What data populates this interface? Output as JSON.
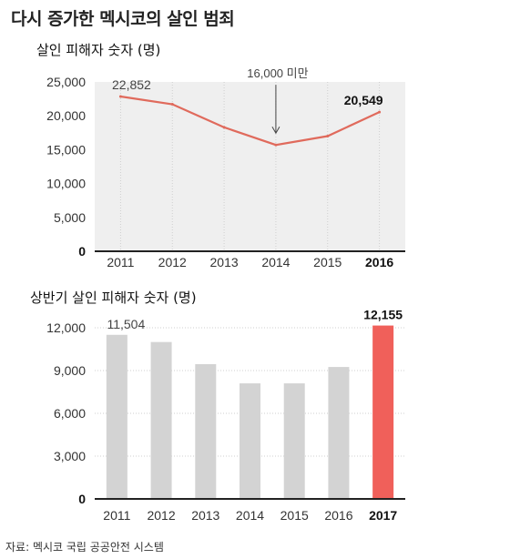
{
  "title": "다시 증가한 멕시코의 살인 범죄",
  "source": "자료: 멕시코 국립 공공안전 시스템",
  "colors": {
    "line": "#e06a5c",
    "area": "#efefef",
    "bar": "#d3d3d3",
    "highlight": "#f0605a",
    "axis": "#222222",
    "grid": "#cfcfcf"
  },
  "chart_data": [
    {
      "type": "line",
      "title": "살인 피해자 숫자 (명)",
      "x": [
        "2011",
        "2012",
        "2013",
        "2014",
        "2015",
        "2016"
      ],
      "values": [
        22852,
        21700,
        18300,
        15700,
        17000,
        20549
      ],
      "ylim": [
        0,
        25000
      ],
      "yticks": [
        "0",
        "5,000",
        "10,000",
        "15,000",
        "20,000",
        "25,000"
      ],
      "ytick_values": [
        0,
        5000,
        10000,
        15000,
        20000,
        25000
      ],
      "data_labels": [
        {
          "index": 0,
          "text": "22,852"
        },
        {
          "index": 5,
          "text": "20,549"
        }
      ],
      "annotation": {
        "index": 3,
        "text": "16,000 미만"
      },
      "highlight_tick": "2016",
      "grid": true
    },
    {
      "type": "bar",
      "title": "상반기 살인 피해자 숫자 (명)",
      "categories": [
        "2011",
        "2012",
        "2013",
        "2014",
        "2015",
        "2016",
        "2017"
      ],
      "values": [
        11504,
        11000,
        9450,
        8100,
        8100,
        9250,
        12155
      ],
      "ylim": [
        0,
        12000
      ],
      "yticks": [
        "0",
        "3,000",
        "6,000",
        "9,000",
        "12,000"
      ],
      "ytick_values": [
        0,
        3000,
        6000,
        9000,
        12000
      ],
      "data_labels": [
        {
          "index": 0,
          "text": "11,504"
        },
        {
          "index": 6,
          "text": "12,155"
        }
      ],
      "highlight_index": 6,
      "highlight_tick": "2017",
      "grid": true
    }
  ]
}
